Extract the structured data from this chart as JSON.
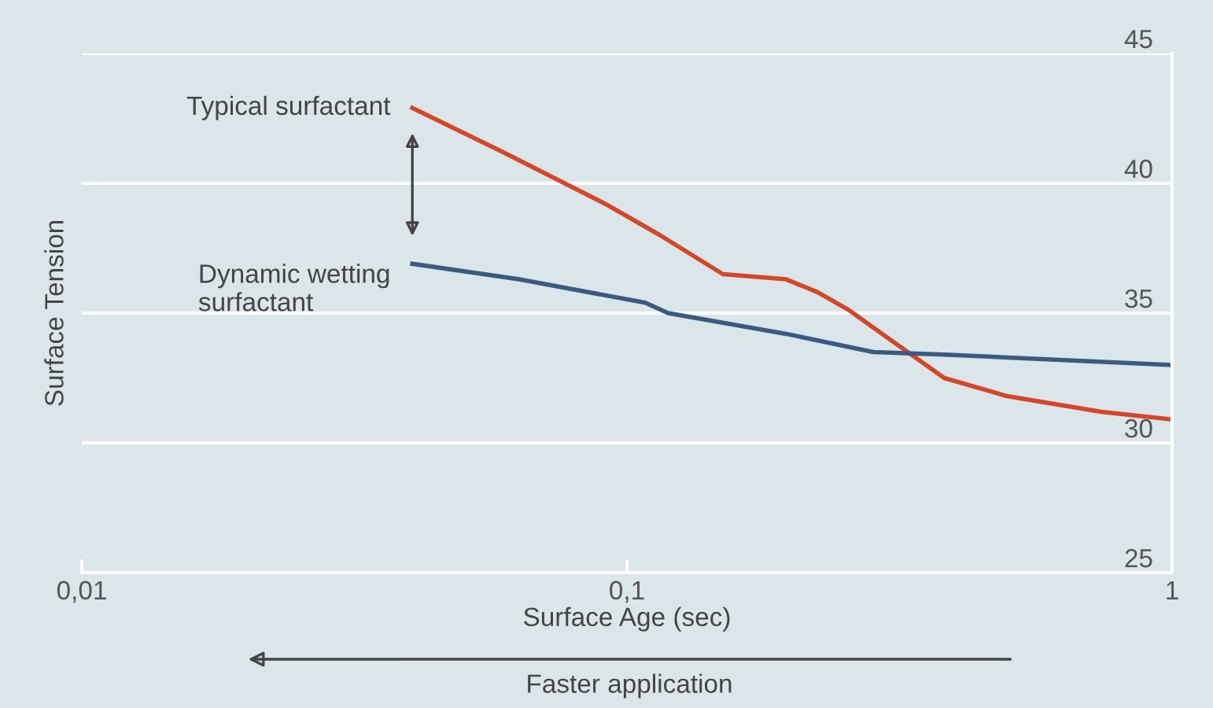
{
  "chart_data": {
    "type": "line",
    "xlabel": "Surface Age (sec)",
    "ylabel": "Surface Tension",
    "log": "x",
    "xlim": [
      0.01,
      1
    ],
    "xticks": [
      {
        "value": 0.01,
        "label": "0,01"
      },
      {
        "value": 0.1,
        "label": "0,1"
      },
      1
    ],
    "ylim": [
      25,
      45
    ],
    "yticks": [
      25,
      30,
      35,
      40,
      45
    ],
    "grid": "y",
    "line_style": "solid",
    "marker": "none",
    "series": [
      {
        "name": "Typical surfactant",
        "color": "#d4462a",
        "x": [
          0.0404,
          0.0593,
          0.0914,
          0.115,
          0.15,
          0.196,
          0.224,
          0.256,
          0.303,
          0.382,
          0.498,
          0.742,
          1
        ],
        "values": [
          42.9,
          41.2,
          39.2,
          38.0,
          36.5,
          36.3,
          35.8,
          35.1,
          34.0,
          32.5,
          31.8,
          31.2,
          30.9
        ]
      },
      {
        "name": "Dynamic wetting\nsurfactant",
        "color": "#3c5a80",
        "x": [
          0.0404,
          0.0634,
          0.108,
          0.119,
          0.196,
          0.283,
          0.382,
          1
        ],
        "values": [
          36.9,
          36.3,
          35.4,
          35.0,
          34.2,
          33.5,
          33.4,
          33.0
        ]
      }
    ],
    "annotations": [
      "Faster application"
    ]
  }
}
